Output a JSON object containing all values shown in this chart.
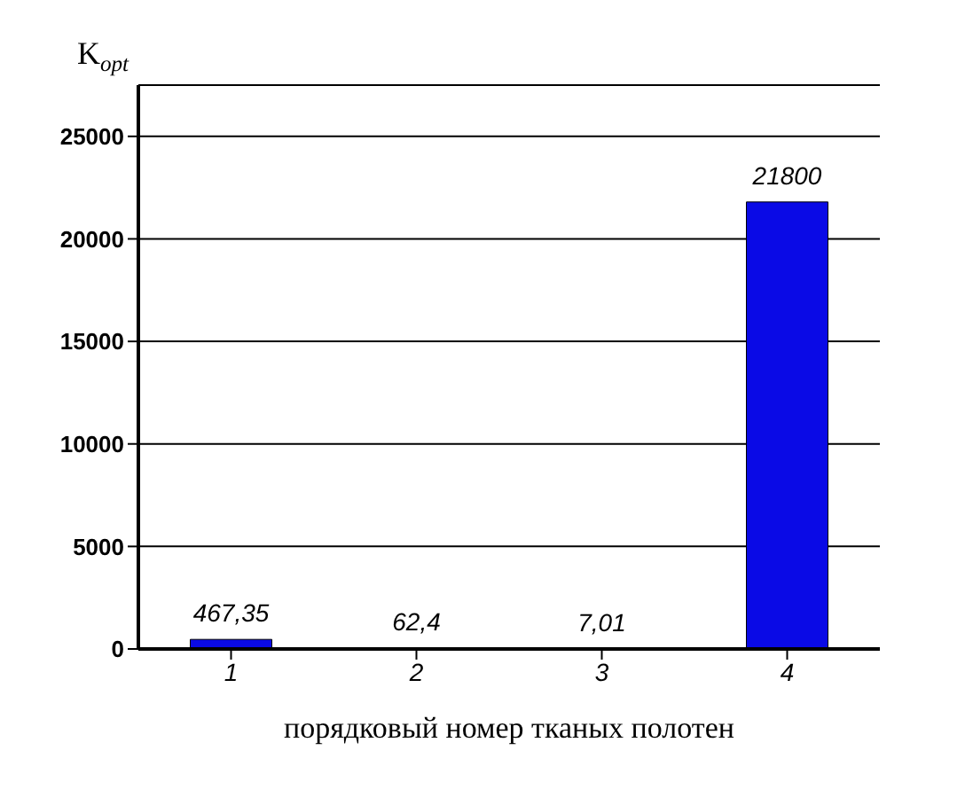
{
  "chart_data": {
    "type": "bar",
    "ylabel": "K$_{opt}$",
    "xlabel": "порядковый номер тканых полотен",
    "categories": [
      "1",
      "2",
      "3",
      "4"
    ],
    "values": [
      467.35,
      62.4,
      7.01,
      21800
    ],
    "value_labels": [
      "467,35",
      "62,4",
      "7,01",
      "21800"
    ],
    "color": "#0a0ae6",
    "ylim": [
      0,
      27500
    ],
    "yticks": [
      0,
      5000,
      10000,
      15000,
      20000,
      25000
    ],
    "grid": "y"
  }
}
